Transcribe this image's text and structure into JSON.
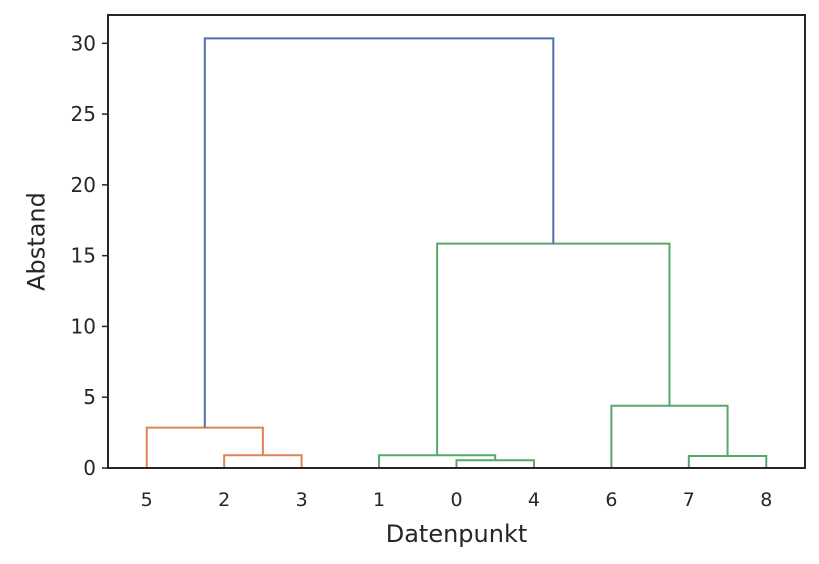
{
  "chart_data": {
    "type": "dendrogram",
    "xlabel": "Datenpunkt",
    "ylabel": "Abstand",
    "ylim": [
      0,
      32
    ],
    "yticks": [
      0,
      5,
      10,
      15,
      20,
      25,
      30
    ],
    "leaves": [
      "5",
      "2",
      "3",
      "1",
      "0",
      "4",
      "6",
      "7",
      "8"
    ],
    "grid": false,
    "colors": {
      "cluster_orange": "#dd8452",
      "cluster_green": "#55a868",
      "above_threshold": "#4c72b0",
      "axes": "#262626"
    },
    "merges": [
      {
        "left": "2",
        "right": "3",
        "height": 0.9,
        "color": "cluster_orange"
      },
      {
        "left": "5",
        "right": "2+3",
        "height": 2.85,
        "color": "cluster_orange"
      },
      {
        "left": "0",
        "right": "4",
        "height": 0.55,
        "color": "cluster_green"
      },
      {
        "left": "1",
        "right": "0+4",
        "height": 0.9,
        "color": "cluster_green"
      },
      {
        "left": "7",
        "right": "8",
        "height": 0.85,
        "color": "cluster_green"
      },
      {
        "left": "6",
        "right": "7+8",
        "height": 4.4,
        "color": "cluster_green"
      },
      {
        "left": "1+0+4",
        "right": "6+7+8",
        "height": 15.85,
        "color": "cluster_green"
      },
      {
        "left": "5+2+3",
        "right": "1+0+4+6+7+8",
        "height": 30.35,
        "color": "above_threshold"
      }
    ]
  }
}
